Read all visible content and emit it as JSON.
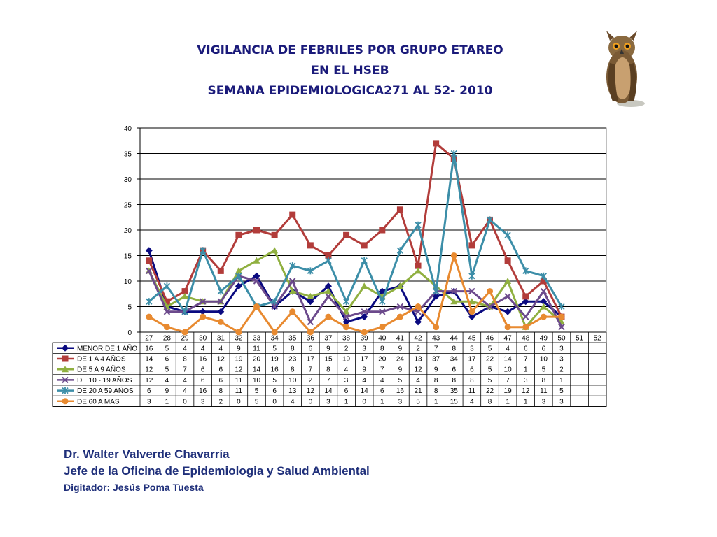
{
  "title": {
    "line1": "VIGILANCIA DE FEBRILES  POR GRUPO ETAREO",
    "line2": "EN EL HSEB",
    "line3": "SEMANA EPIDEMIOLOGICA271 AL 52- 2010"
  },
  "footer": {
    "name": "Dr.  Walter Valverde Chavarría",
    "role": "Jefe de la Oficina de Epidemiologia y  Salud Ambiental",
    "digitador": "Digitador: Jesús Poma Tuesta"
  },
  "chart_data": {
    "type": "line",
    "title": "",
    "xlabel": "",
    "ylabel": "",
    "ylim": [
      0,
      40
    ],
    "yticks": [
      0,
      5,
      10,
      15,
      20,
      25,
      30,
      35,
      40
    ],
    "grid": true,
    "legend": "data-table",
    "categories": [
      "27",
      "28",
      "29",
      "30",
      "31",
      "32",
      "33",
      "34",
      "35",
      "36",
      "37",
      "38",
      "39",
      "40",
      "41",
      "42",
      "43",
      "44",
      "45",
      "46",
      "47",
      "48",
      "49",
      "50",
      "51",
      "52"
    ],
    "series": [
      {
        "name": "MENOR DE 1 AÑO",
        "color": "#0a0a80",
        "marker": "diamond",
        "values": [
          16,
          5,
          4,
          4,
          4,
          9,
          11,
          5,
          8,
          6,
          9,
          2,
          3,
          8,
          9,
          2,
          7,
          8,
          3,
          5,
          4,
          6,
          6,
          3,
          null,
          null
        ]
      },
      {
        "name": "DE 1 A 4 AÑOS",
        "color": "#b23c3a",
        "marker": "square",
        "values": [
          14,
          6,
          8,
          16,
          12,
          19,
          20,
          19,
          23,
          17,
          15,
          19,
          17,
          20,
          24,
          13,
          37,
          34,
          17,
          22,
          14,
          7,
          10,
          3,
          null,
          null
        ]
      },
      {
        "name": "DE 5 A 9 AÑOS",
        "color": "#90b040",
        "marker": "triangle",
        "values": [
          12,
          5,
          7,
          6,
          6,
          12,
          14,
          16,
          8,
          7,
          8,
          4,
          9,
          7,
          9,
          12,
          9,
          6,
          6,
          5,
          10,
          1,
          5,
          2,
          null,
          null
        ]
      },
      {
        "name": "DE 10 - 19 AÑOS",
        "color": "#6c4a8c",
        "marker": "x",
        "values": [
          12,
          4,
          4,
          6,
          6,
          11,
          10,
          5,
          10,
          2,
          7,
          3,
          4,
          4,
          5,
          4,
          8,
          8,
          8,
          5,
          7,
          3,
          8,
          1,
          null,
          null
        ]
      },
      {
        "name": "DE 20 A 59 AÑOS",
        "color": "#3c8ea8",
        "marker": "star",
        "values": [
          6,
          9,
          4,
          16,
          8,
          11,
          5,
          6,
          13,
          12,
          14,
          6,
          14,
          6,
          16,
          21,
          8,
          35,
          11,
          22,
          19,
          12,
          11,
          5,
          null,
          null
        ]
      },
      {
        "name": "DE 60 A  MAS",
        "color": "#e88a30",
        "marker": "circle",
        "values": [
          3,
          1,
          0,
          3,
          2,
          0,
          5,
          0,
          4,
          0,
          3,
          1,
          0,
          1,
          3,
          5,
          1,
          15,
          4,
          8,
          1,
          1,
          3,
          3,
          null,
          null
        ]
      }
    ]
  },
  "owl": {
    "icon": "owl-illustration"
  }
}
